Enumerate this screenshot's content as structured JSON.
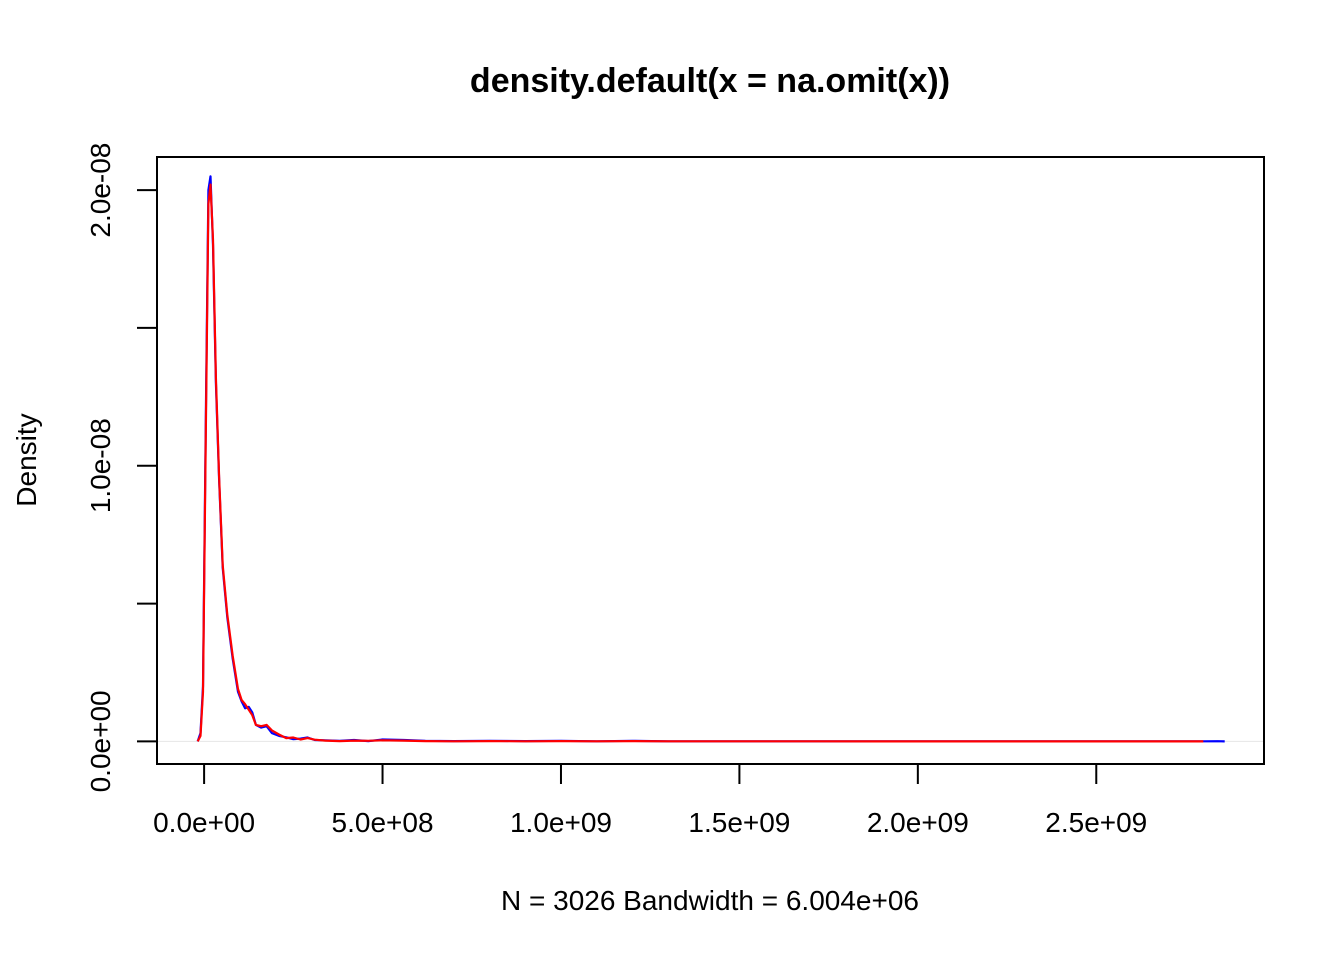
{
  "chart_data": {
    "type": "line",
    "title": "density.default(x = na.omit(x))",
    "xlabel": "N = 3026   Bandwidth = 6.004e+06",
    "ylabel": "Density",
    "xlim": [
      -132000000,
      2970000000
    ],
    "ylim": [
      -8.2e-10,
      2.12e-08
    ],
    "x_ticks": [
      {
        "value": 0,
        "label": "0.0e+00"
      },
      {
        "value": 500000000,
        "label": "5.0e+08"
      },
      {
        "value": 1000000000,
        "label": "1.0e+09"
      },
      {
        "value": 1500000000,
        "label": "1.5e+09"
      },
      {
        "value": 2000000000,
        "label": "2.0e+09"
      },
      {
        "value": 2500000000,
        "label": "2.5e+09"
      }
    ],
    "y_ticks": [
      {
        "value": 0,
        "label": "0.0e+00"
      },
      {
        "value": 5e-09,
        "label": ""
      },
      {
        "value": 1e-08,
        "label": "1.0e-08"
      },
      {
        "value": 1.5e-08,
        "label": ""
      },
      {
        "value": 2e-08,
        "label": "2.0e-08"
      }
    ],
    "baseline": {
      "y": 0,
      "color": "#e6e6e6"
    },
    "grid": false,
    "legend": "none",
    "series": [
      {
        "color": "#0000ff",
        "x": [
          -18000000,
          -10000000,
          -3000000,
          5000000,
          12000000,
          18000000,
          25000000,
          33000000,
          42000000,
          52000000,
          65000000,
          80000000,
          95000000,
          105000000,
          115000000,
          125000000,
          135000000,
          145000000,
          160000000,
          175000000,
          190000000,
          210000000,
          230000000,
          250000000,
          270000000,
          290000000,
          310000000,
          340000000,
          380000000,
          420000000,
          460000000,
          500000000,
          560000000,
          620000000,
          700000000,
          800000000,
          900000000,
          1000000000,
          1100000000,
          1200000000,
          1300000000,
          1500000000,
          1700000000,
          1900000000,
          2100000000,
          2300000000,
          2500000000,
          2700000000,
          2800000000,
          2840000000,
          2860000000
        ],
        "y": [
          0,
          3e-10,
          2e-09,
          1.2e-08,
          2e-08,
          2.05e-08,
          1.8e-08,
          1.3e-08,
          9.5e-09,
          6.3e-09,
          4.5e-09,
          3e-09,
          1.8e-09,
          1.45e-09,
          1.2e-09,
          1.25e-09,
          1.05e-09,
          6e-10,
          5e-10,
          5.5e-10,
          3e-10,
          2e-10,
          1.5e-10,
          8e-11,
          1e-10,
          1.4e-10,
          5e-11,
          4e-11,
          2e-11,
          5e-11,
          1e-11,
          7e-11,
          5e-11,
          2e-11,
          1e-11,
          2e-11,
          1e-11,
          2e-11,
          5e-12,
          2e-11,
          5e-12,
          2e-12,
          2e-12,
          1e-12,
          1e-12,
          1e-12,
          1e-12,
          2e-12,
          4e-12,
          6e-12,
          0
        ]
      },
      {
        "color": "#ff0000",
        "x": [
          -18000000,
          -10000000,
          -3000000,
          5000000,
          12000000,
          18000000,
          25000000,
          33000000,
          42000000,
          52000000,
          65000000,
          80000000,
          95000000,
          105000000,
          115000000,
          125000000,
          135000000,
          145000000,
          160000000,
          175000000,
          190000000,
          210000000,
          230000000,
          250000000,
          270000000,
          290000000,
          310000000,
          340000000,
          380000000,
          420000000,
          460000000,
          500000000,
          560000000,
          620000000,
          700000000,
          800000000,
          900000000,
          1000000000,
          1100000000,
          1200000000,
          1300000000,
          1500000000,
          1700000000,
          1900000000,
          2100000000,
          2300000000,
          2500000000,
          2700000000,
          2800000000
        ],
        "y": [
          0,
          2e-10,
          1.8e-09,
          1.15e-08,
          1.95e-08,
          2.02e-08,
          1.82e-08,
          1.32e-08,
          9.6e-09,
          6.4e-09,
          4.6e-09,
          3.1e-09,
          1.9e-09,
          1.5e-09,
          1.35e-09,
          1.15e-09,
          9.5e-10,
          6e-10,
          5.5e-10,
          6e-10,
          4e-10,
          2.5e-10,
          1.2e-10,
          1.4e-10,
          7e-11,
          1.2e-10,
          6e-11,
          3e-11,
          1e-11,
          3e-11,
          2e-11,
          4e-11,
          3e-11,
          1e-11,
          5e-12,
          1e-11,
          5e-12,
          1e-11,
          5e-12,
          1e-11,
          3e-12,
          2e-12,
          2e-12,
          1e-12,
          1e-12,
          1e-12,
          1e-12,
          1e-12,
          0
        ]
      }
    ]
  }
}
